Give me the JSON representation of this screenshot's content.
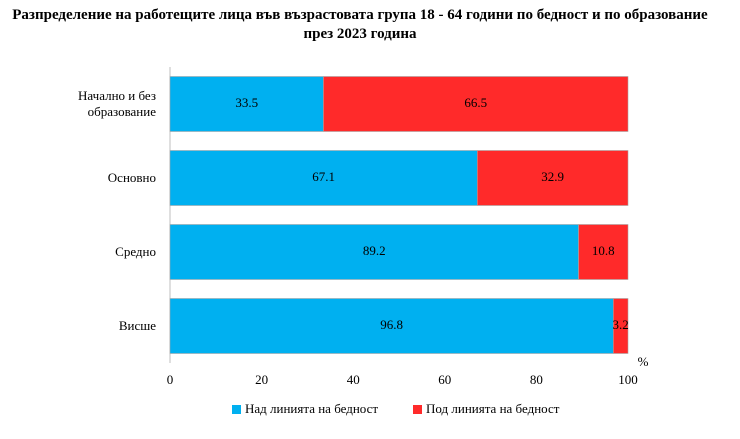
{
  "chart_data": {
    "type": "bar",
    "orientation": "horizontal",
    "stacked": true,
    "title": "Разпределение на работещите лица във възрастовата група 18 - 64 години по бедност и по образование през 2023 година",
    "categories": [
      "Начално и без образование",
      "Основно",
      "Средно",
      "Висше"
    ],
    "series": [
      {
        "name": "Над линията на бедност",
        "color": "#00b0f0",
        "values": [
          33.5,
          67.1,
          89.2,
          96.8
        ]
      },
      {
        "name": "Под линията на бедност",
        "color": "#ff2a2a",
        "values": [
          66.5,
          32.9,
          10.8,
          3.2
        ]
      }
    ],
    "xlabel": "%",
    "xlim": [
      0,
      100
    ],
    "xticks": [
      0,
      20,
      40,
      60,
      80,
      100
    ],
    "grid": false,
    "legend": "bottom"
  }
}
